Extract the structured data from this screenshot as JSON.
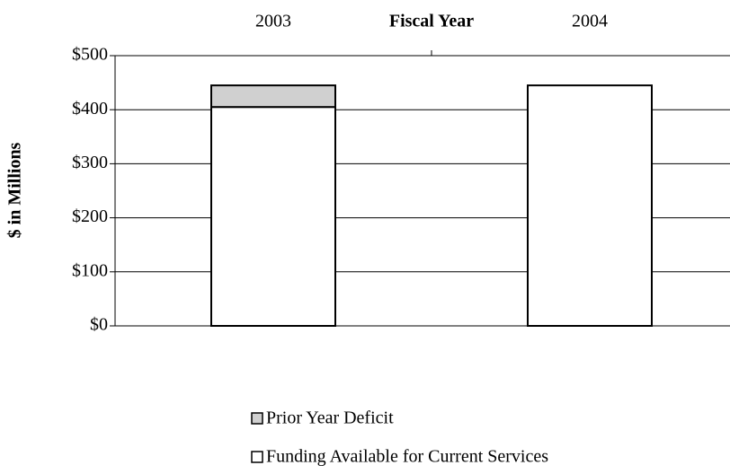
{
  "chart_data": {
    "type": "stacked-bar",
    "x_label": "Fiscal Year",
    "y_label": "$ in Millions",
    "categories": [
      "2003",
      "2004"
    ],
    "series": [
      {
        "name": "Funding Available for Current Services",
        "color": "#ffffff",
        "values": [
          405,
          445
        ]
      },
      {
        "name": "Prior Year Deficit",
        "color": "#d0d0d0",
        "values": [
          40,
          0
        ]
      }
    ],
    "ylim": [
      0,
      500
    ],
    "yticks": [
      {
        "value": 0,
        "label": "$0"
      },
      {
        "value": 100,
        "label": "$100"
      },
      {
        "value": 200,
        "label": "$200"
      },
      {
        "value": 300,
        "label": "$300"
      },
      {
        "value": 400,
        "label": "$400"
      },
      {
        "value": 500,
        "label": "$500"
      }
    ],
    "grid": true,
    "legend": "bottom"
  }
}
